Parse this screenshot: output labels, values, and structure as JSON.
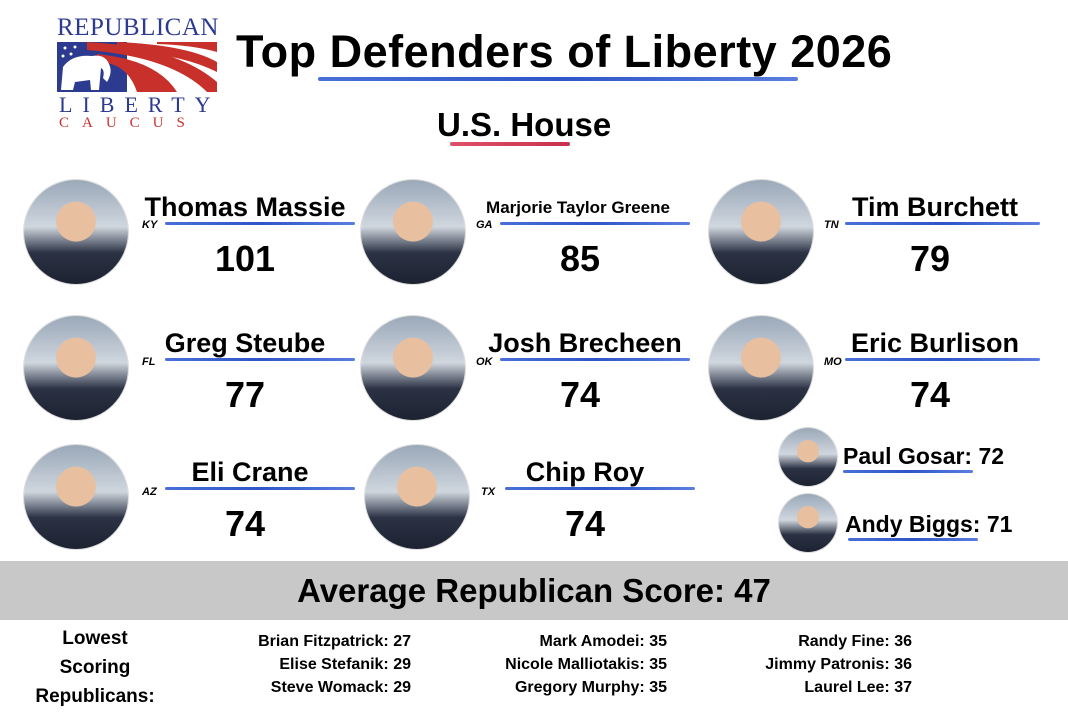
{
  "logo": {
    "line1": "REPUBLICAN",
    "line2": "LIBERTY",
    "line3": "CAUCUS"
  },
  "title": "Top Defenders of Liberty 2026",
  "subtitle": "U.S. House",
  "colors": {
    "accent_blue": "#2f55c8",
    "accent_red": "#c8304c",
    "logo_blue": "#2c3a8f",
    "logo_red": "#c8302c",
    "average_bar": "#c8c8c8"
  },
  "top_members": [
    {
      "name": "Thomas Massie",
      "state": "KY",
      "score": "101"
    },
    {
      "name": "Marjorie Taylor Greene",
      "state": "GA",
      "score": "85"
    },
    {
      "name": "Tim Burchett",
      "state": "TN",
      "score": "79"
    },
    {
      "name": "Greg Steube",
      "state": "FL",
      "score": "77"
    },
    {
      "name": "Josh Brecheen",
      "state": "OK",
      "score": "74"
    },
    {
      "name": "Eric Burlison",
      "state": "MO",
      "score": "74"
    },
    {
      "name": "Eli Crane",
      "state": "AZ",
      "score": "74"
    },
    {
      "name": "Chip Roy",
      "state": "TX",
      "score": "74"
    }
  ],
  "honorable": [
    {
      "label": "Paul Gosar: 72"
    },
    {
      "label": "Andy Biggs: 71"
    }
  ],
  "average": "Average Republican Score: 47",
  "lowest": {
    "label_lines": [
      "Lowest",
      "Scoring",
      "Republicans:"
    ],
    "columns": [
      [
        "Brian Fitzpatrick: 27",
        "Elise Stefanik: 29",
        "Steve Womack: 29"
      ],
      [
        "Mark Amodei: 35",
        "Nicole Malliotakis: 35",
        "Gregory Murphy: 35"
      ],
      [
        "Randy Fine: 36",
        "Jimmy Patronis: 36",
        "Laurel Lee: 37"
      ]
    ]
  }
}
